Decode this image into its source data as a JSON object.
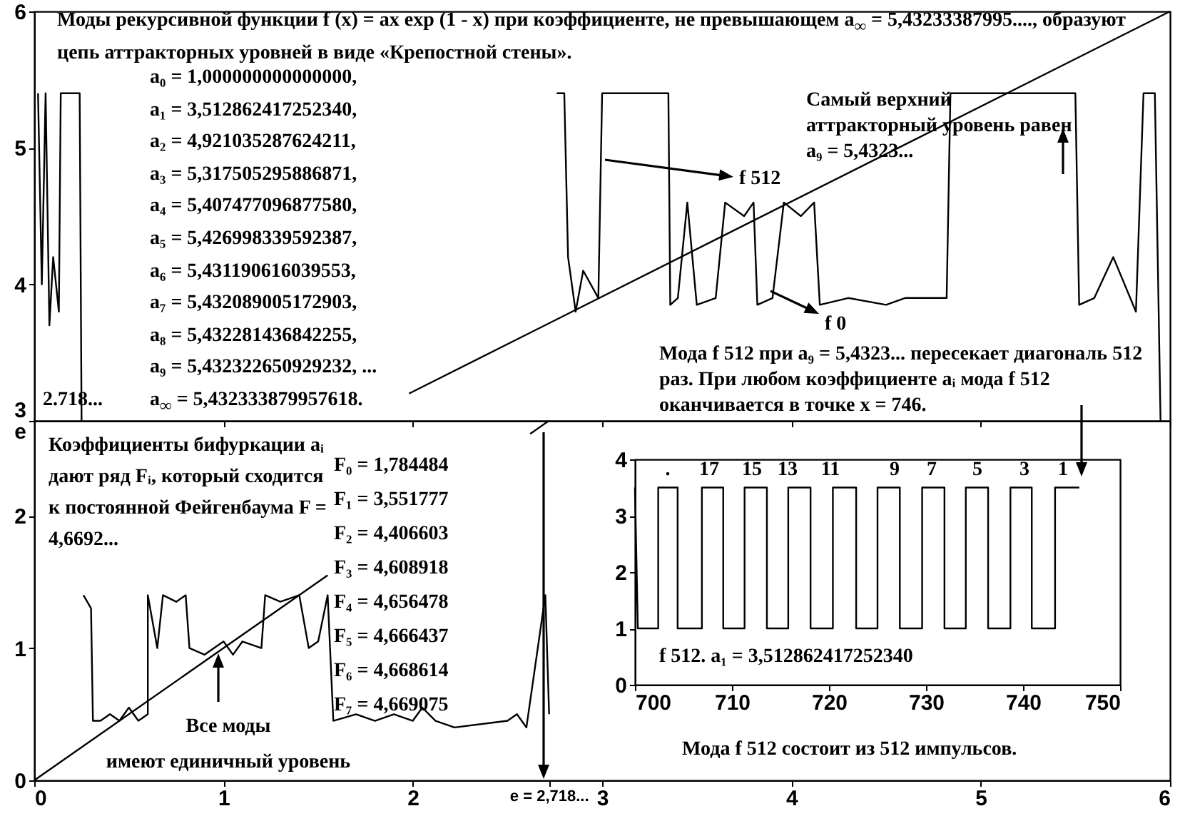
{
  "chart_data": [
    {
      "type": "line",
      "xlim": [
        0,
        6
      ],
      "ylim": [
        3,
        6
      ],
      "xticks": [
        0,
        1,
        2,
        3,
        4,
        5,
        6
      ],
      "yticks": [
        3,
        4,
        5,
        6
      ],
      "tick_labels": "y",
      "series": [
        {
          "color": "#000000",
          "x": [
            0.02,
            0.04,
            0.06,
            0.08,
            0.1,
            0.13,
            0.14,
            0.2,
            0.24,
            0.25,
            1.5,
            2.76,
            2.8,
            2.82,
            2.86,
            2.9,
            2.98,
            3.0,
            3.1,
            3.2,
            3.3,
            3.35,
            3.36,
            3.4,
            3.45,
            3.5,
            3.6,
            3.65,
            3.75,
            3.8,
            3.82,
            3.9,
            3.96,
            4.05,
            4.12,
            4.15,
            4.3,
            4.5,
            4.6,
            4.82,
            4.84,
            5.0,
            5.1,
            5.3,
            5.5,
            5.52,
            5.6,
            5.7,
            5.82,
            5.86,
            5.92,
            5.95
          ],
          "values": [
            5.4,
            4.0,
            5.4,
            3.7,
            4.2,
            3.8,
            5.4,
            5.4,
            5.4,
            3.0,
            null,
            5.4,
            5.4,
            4.2,
            3.8,
            4.1,
            3.9,
            5.4,
            5.4,
            5.4,
            5.4,
            5.4,
            3.85,
            3.9,
            4.6,
            3.85,
            3.9,
            4.6,
            4.5,
            4.6,
            3.85,
            3.9,
            4.6,
            4.5,
            4.6,
            3.85,
            3.9,
            3.85,
            3.9,
            3.9,
            5.4,
            5.4,
            5.4,
            5.4,
            5.4,
            3.85,
            3.9,
            4.2,
            3.8,
            5.4,
            5.4,
            3.0
          ]
        },
        {
          "color": "#000000",
          "x": [
            1.98,
            6
          ],
          "values": [
            3.2,
            6
          ]
        }
      ],
      "annotations": [
        "Моды рекурсивной функции f (x) = ax exp (1 - x) при коэффициенте, не превышающем a$_{∞}$ = 5,43233387995...., образуют цепь аттракторных уровней в виде «Крепостной стены».",
        "a₀ = 1,000000000000000,",
        "a₁ = 3,512862417252340,",
        "a₂ = 4,921035287624211,",
        "a₃ = 5,317505295886871,",
        "a₄ = 5,407477096877580,",
        "a₅ = 5,426998339592387,",
        "a₆ = 5,431190616039553,",
        "a₇ = 5,432089005172903,",
        "a₈ = 5,432281436842255,",
        "a₉ = 5,432322650929232, ...",
        "2.718...",
        "a$_{∞}$ = 5,432333879957618.",
        "Самый верхний аттракторный уровень равен a₉ = 5,4323...",
        "f 512",
        "f 0",
        "Мода f 512 при a₉ = 5,4323... пересекает диагональ 512 раз. При любом коэффициенте aᵢ мода f 512 оканчивается в точке x = 746."
      ]
    },
    {
      "type": "line",
      "xlim": [
        0,
        6
      ],
      "ylim": [
        0,
        2.718
      ],
      "xticks": [
        0,
        1,
        2,
        {
          "value": 2.718,
          "label": "e = 2,718..."
        },
        3,
        4,
        5,
        6
      ],
      "yticks": [
        0,
        1,
        2,
        {
          "value": 2.718,
          "label": "e"
        }
      ],
      "series": [
        {
          "color": "#000000",
          "x": [
            0.26,
            0.3,
            0.31,
            0.35,
            0.4,
            0.45,
            0.5,
            0.55,
            0.6,
            0.6,
            0.65,
            0.68,
            0.75,
            0.8,
            0.82,
            0.9,
            1.0,
            1.05,
            1.1,
            1.2,
            1.22,
            1.3,
            1.4,
            1.45,
            1.5,
            1.55,
            1.58,
            1.7,
            1.8,
            1.9,
            2.0,
            2.05,
            2.12,
            2.22,
            2.5,
            2.55,
            2.6,
            2.7,
            2.72
          ],
          "values": [
            1.4,
            1.3,
            0.45,
            0.45,
            0.5,
            0.45,
            0.55,
            0.45,
            0.5,
            1.4,
            1.0,
            1.4,
            1.35,
            1.4,
            1.0,
            0.95,
            1.05,
            0.95,
            1.05,
            1.0,
            1.4,
            1.35,
            1.4,
            1.0,
            1.05,
            1.4,
            0.45,
            0.5,
            0.45,
            0.5,
            0.45,
            0.55,
            0.45,
            0.4,
            0.45,
            0.5,
            0.4,
            1.4,
            0.5
          ]
        },
        {
          "color": "#000000",
          "x": [
            0,
            1.55,
            2.1,
            2.62,
            2.718
          ],
          "values": [
            0,
            1.55,
            null,
            2.62,
            2.718
          ]
        }
      ],
      "annotations": [
        "Коэффициенты бифуркации aᵢ дают ряд Fᵢ, который сходится к постоянной Фейгенбаума F = 4,6692...",
        "F₀ = 1,784484",
        "F₁ = 3,551777",
        "F₂ = 4,406603",
        "F₃ = 4,608918",
        "F₄ = 4,656478",
        "F₅ = 4,666437",
        "F₆ = 4,668614",
        "F₇ = 4,669075",
        "Все моды",
        "имеют единичный уровень"
      ]
    },
    {
      "type": "line",
      "xlim": [
        700,
        750
      ],
      "ylim": [
        0,
        4
      ],
      "xticks": [
        700,
        710,
        720,
        730,
        740,
        750
      ],
      "yticks": [
        0,
        1,
        2,
        3,
        4
      ],
      "series": [
        {
          "color": "#000000",
          "x": [
            700,
            700.3,
            702.4,
            702.4,
            704.4,
            704.4,
            706.9,
            706.9,
            709.1,
            709.1,
            711.3,
            711.3,
            713.6,
            713.6,
            715.8,
            715.8,
            718.1,
            718.1,
            720.4,
            720.4,
            722.8,
            722.8,
            725.0,
            725.0,
            727.3,
            727.3,
            729.6,
            729.6,
            731.9,
            731.9,
            734.1,
            734.1,
            736.4,
            736.4,
            738.7,
            738.7,
            740.9,
            740.9,
            743.3,
            743.3,
            745.8
          ],
          "values": [
            3.5,
            1,
            1,
            3.5,
            3.5,
            1,
            1,
            3.5,
            3.5,
            1,
            1,
            3.5,
            3.5,
            1,
            1,
            3.5,
            3.5,
            1,
            1,
            3.5,
            3.5,
            1,
            1,
            3.5,
            3.5,
            1,
            1,
            3.5,
            3.5,
            1,
            1,
            3.5,
            3.5,
            1,
            1,
            3.5,
            3.5,
            1,
            1,
            3.5,
            3.5
          ]
        }
      ],
      "annotations": [
        ".",
        "17",
        "15",
        "13",
        "11",
        "9",
        "7",
        "5",
        "3",
        "1",
        "f 512.    a₁ = 3,512862417252340",
        "Мода f 512 состоит из 512 импульсов."
      ]
    }
  ]
}
